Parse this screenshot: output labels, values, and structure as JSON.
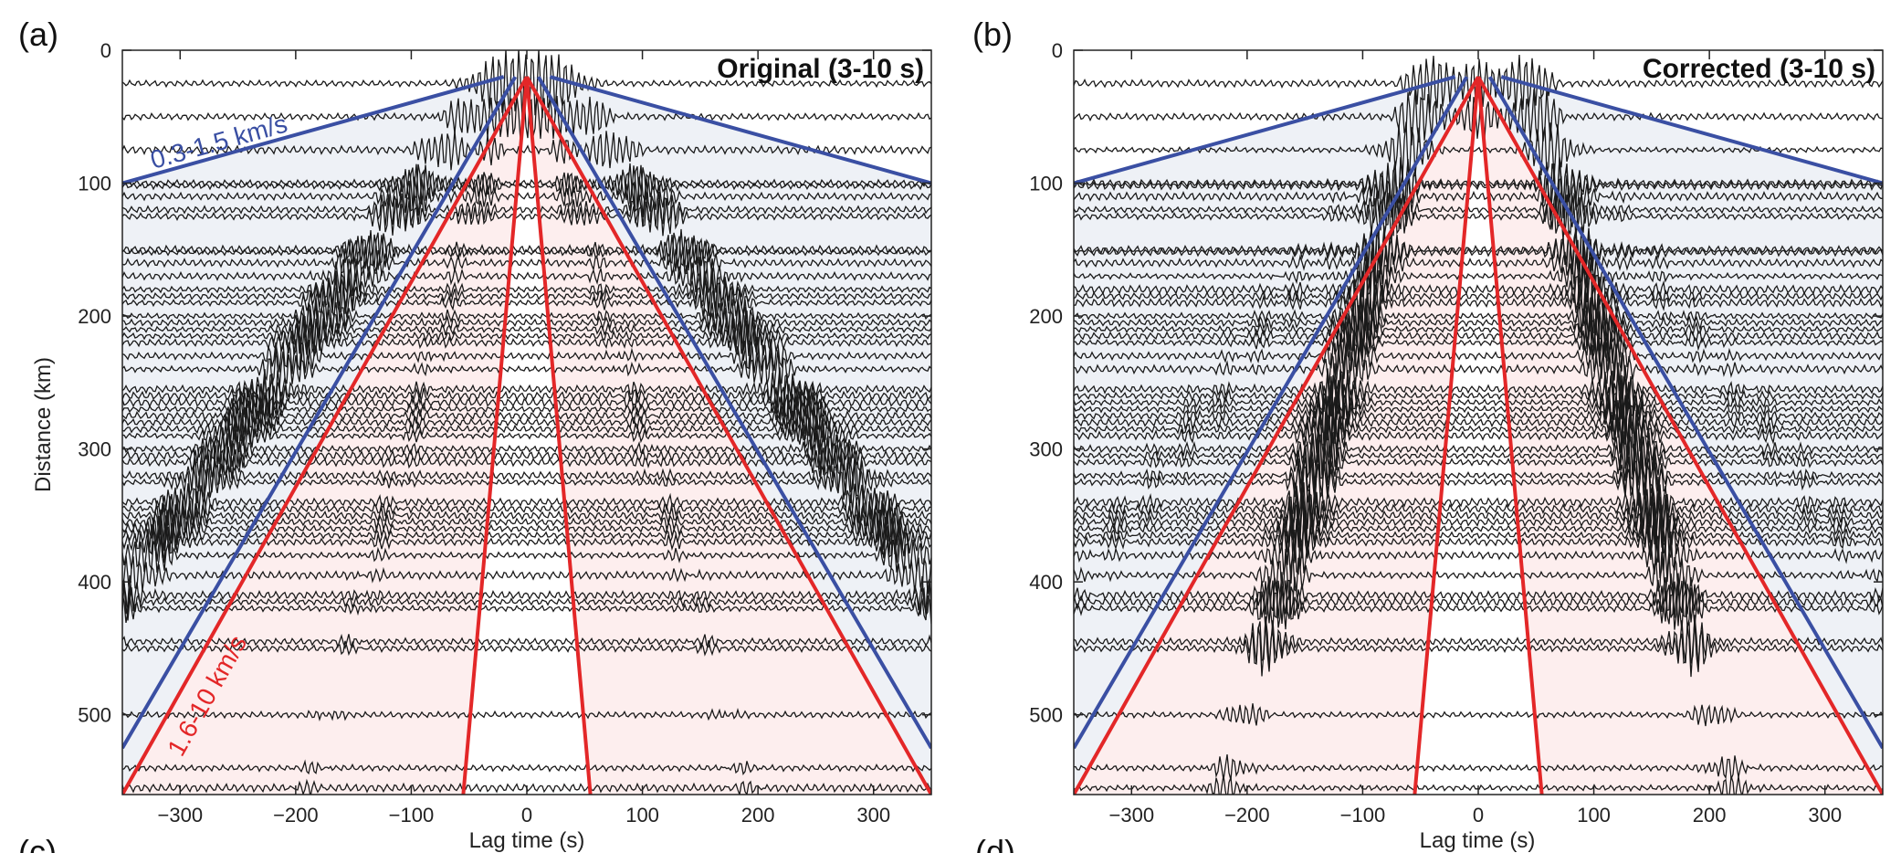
{
  "chart_data": [
    {
      "type": "line",
      "panel_label": "(a)",
      "title": "Original (3-10 s)",
      "xlabel": "Lag time (s)",
      "ylabel": "Distance (km)",
      "xlim": [
        -350,
        350
      ],
      "ylim": [
        0,
        560
      ],
      "xticks": [
        -300,
        -200,
        -100,
        0,
        100,
        200,
        300
      ],
      "xtick_labels": [
        "−300",
        "−200",
        "−100",
        "0",
        "100",
        "200",
        "300"
      ],
      "yticks": [
        0,
        100,
        200,
        300,
        400,
        500
      ],
      "ytick_labels": [
        "0",
        "100",
        "200",
        "300",
        "400",
        "500"
      ],
      "blue_band_label": "0.3-1.5 km/s",
      "red_band_label": "1.6-10 km/s",
      "blue_lines": [
        {
          "name": "0.3 km/s",
          "points": [
            [
              -20,
              20
            ],
            [
              -350,
              100
            ]
          ]
        },
        {
          "name": "0.3 km/s",
          "points": [
            [
              20,
              20
            ],
            [
              350,
              100
            ]
          ]
        },
        {
          "name": "1.5 km/s",
          "points": [
            [
              -10,
              20
            ],
            [
              -350,
              525
            ]
          ]
        },
        {
          "name": "1.5 km/s",
          "points": [
            [
              10,
              20
            ],
            [
              350,
              525
            ]
          ]
        }
      ],
      "red_lines": [
        {
          "name": "1.6 km/s",
          "points": [
            [
              0,
              20
            ],
            [
              -350,
              560
            ]
          ]
        },
        {
          "name": "1.6 km/s",
          "points": [
            [
              0,
              20
            ],
            [
              350,
              560
            ]
          ]
        },
        {
          "name": "10 km/s",
          "points": [
            [
              0,
              20
            ],
            [
              -55,
              560
            ]
          ]
        },
        {
          "name": "10 km/s",
          "points": [
            [
              0,
              20
            ],
            [
              55,
              560
            ]
          ]
        }
      ],
      "band_colors": {
        "blue": "#3a4fa3",
        "red": "#e32728",
        "blue_fill": "#eef1f6",
        "red_fill": "#fdeeee"
      },
      "trace_distances_km": [
        25,
        50,
        75,
        100,
        102,
        110,
        120,
        125,
        150,
        152,
        160,
        170,
        180,
        185,
        190,
        200,
        205,
        210,
        215,
        220,
        230,
        240,
        255,
        260,
        265,
        270,
        275,
        280,
        285,
        290,
        300,
        305,
        310,
        320,
        325,
        340,
        345,
        350,
        355,
        360,
        365,
        370,
        380,
        395,
        410,
        415,
        420,
        445,
        450,
        500,
        540,
        555
      ]
    },
    {
      "type": "line",
      "panel_label": "(b)",
      "title": "Corrected (3-10 s)",
      "xlabel": "Lag time (s)",
      "ylabel": "",
      "xlim": [
        -350,
        350
      ],
      "ylim": [
        0,
        560
      ],
      "xticks": [
        -300,
        -200,
        -100,
        0,
        100,
        200,
        300
      ],
      "xtick_labels": [
        "−300",
        "−200",
        "−100",
        "0",
        "100",
        "200",
        "300"
      ],
      "yticks": [
        0,
        100,
        200,
        300,
        400,
        500
      ],
      "ytick_labels": [
        "0",
        "100",
        "200",
        "300",
        "400",
        "500"
      ],
      "blue_lines": [
        {
          "name": "0.3 km/s",
          "points": [
            [
              -20,
              20
            ],
            [
              -350,
              100
            ]
          ]
        },
        {
          "name": "0.3 km/s",
          "points": [
            [
              20,
              20
            ],
            [
              350,
              100
            ]
          ]
        },
        {
          "name": "1.5 km/s",
          "points": [
            [
              -10,
              20
            ],
            [
              -350,
              525
            ]
          ]
        },
        {
          "name": "1.5 km/s",
          "points": [
            [
              10,
              20
            ],
            [
              350,
              525
            ]
          ]
        }
      ],
      "red_lines": [
        {
          "name": "1.6 km/s",
          "points": [
            [
              0,
              20
            ],
            [
              -350,
              560
            ]
          ]
        },
        {
          "name": "1.6 km/s",
          "points": [
            [
              0,
              20
            ],
            [
              350,
              560
            ]
          ]
        },
        {
          "name": "10 km/s",
          "points": [
            [
              0,
              20
            ],
            [
              -55,
              560
            ]
          ]
        },
        {
          "name": "10 km/s",
          "points": [
            [
              0,
              20
            ],
            [
              55,
              560
            ]
          ]
        }
      ],
      "band_colors": {
        "blue": "#3a4fa3",
        "red": "#e32728",
        "blue_fill": "#eef1f6",
        "red_fill": "#fdeeee"
      },
      "trace_distances_km": [
        25,
        50,
        75,
        100,
        102,
        110,
        120,
        125,
        150,
        152,
        160,
        170,
        180,
        185,
        190,
        200,
        205,
        210,
        215,
        220,
        230,
        240,
        255,
        260,
        265,
        270,
        275,
        280,
        285,
        290,
        300,
        305,
        310,
        320,
        325,
        340,
        345,
        350,
        355,
        360,
        365,
        370,
        380,
        395,
        410,
        415,
        420,
        445,
        450,
        500,
        540,
        555
      ]
    }
  ],
  "bottom_panel_labels": [
    "(c)",
    "(d)"
  ]
}
